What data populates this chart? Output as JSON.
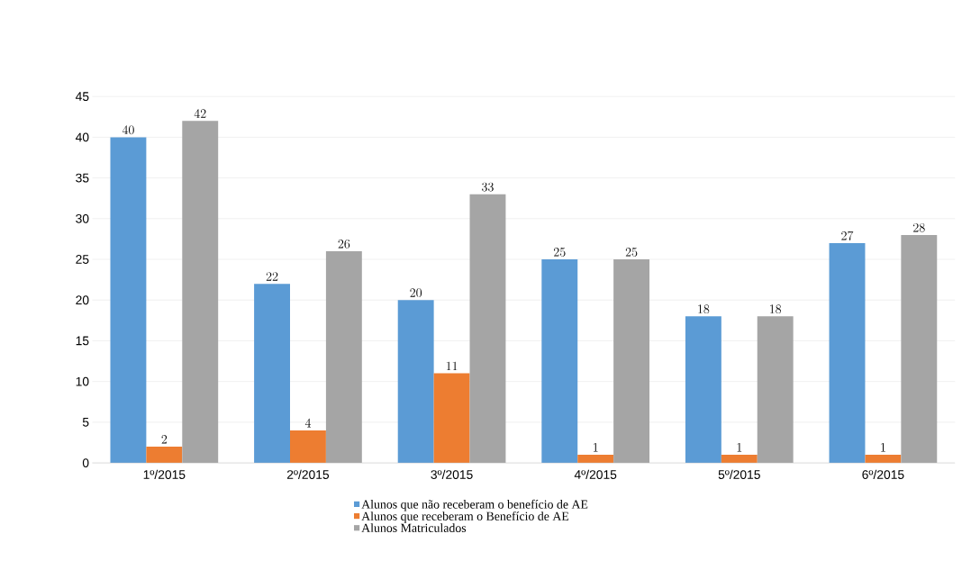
{
  "chart_data": {
    "type": "bar",
    "categories": [
      "1º/2015",
      "2º/2015",
      "3º/2015",
      "4º/2015",
      "5º/2015",
      "6º/2015"
    ],
    "series": [
      {
        "name": "Alunos que não receberam o benefício de AE",
        "color": "#5b9bd5",
        "values": [
          40,
          22,
          20,
          25,
          18,
          27
        ]
      },
      {
        "name": "Alunos que receberam o Benefício de AE",
        "color": "#ed7d31",
        "values": [
          2,
          4,
          11,
          1,
          1,
          1
        ]
      },
      {
        "name": "Alunos Matriculados",
        "color": "#a5a5a5",
        "values": [
          42,
          26,
          33,
          25,
          18,
          28
        ]
      }
    ],
    "ylim": [
      0,
      45
    ],
    "yticks": [
      0,
      5,
      10,
      15,
      20,
      25,
      30,
      35,
      40,
      45
    ],
    "grid": "y",
    "legend": "bottom",
    "data_labels": true
  }
}
